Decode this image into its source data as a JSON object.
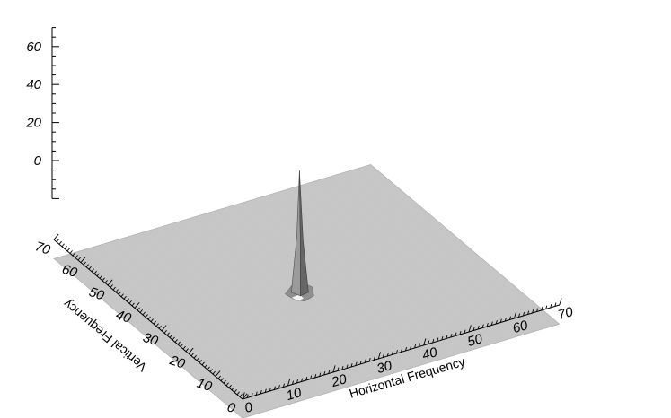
{
  "chart_data": {
    "type": "surface",
    "title": "",
    "xlabel": "Horizontal Frequency",
    "ylabel": "Vertical Frequency",
    "zlabel": "",
    "xlim": [
      0,
      70
    ],
    "ylim": [
      0,
      70
    ],
    "zlim": [
      -20,
      70
    ],
    "x_ticks": [
      0,
      10,
      20,
      30,
      40,
      50,
      60,
      70
    ],
    "y_ticks": [
      0,
      10,
      20,
      30,
      40,
      50,
      60,
      70
    ],
    "z_ticks": [
      0,
      20,
      40,
      60
    ],
    "surface": {
      "baseline_z": -10,
      "x_range": [
        0,
        70
      ],
      "y_range": [
        0,
        70
      ],
      "color": "#c6c6c6"
    },
    "peak": {
      "x": 34,
      "y": 36,
      "z": 53
    },
    "colors": {
      "surface": "#c6c6c6",
      "surface_shadow": "#a8a8a8",
      "peak_light": "#9a9a9a",
      "peak_dark": "#666666",
      "axis": "#000000"
    }
  }
}
